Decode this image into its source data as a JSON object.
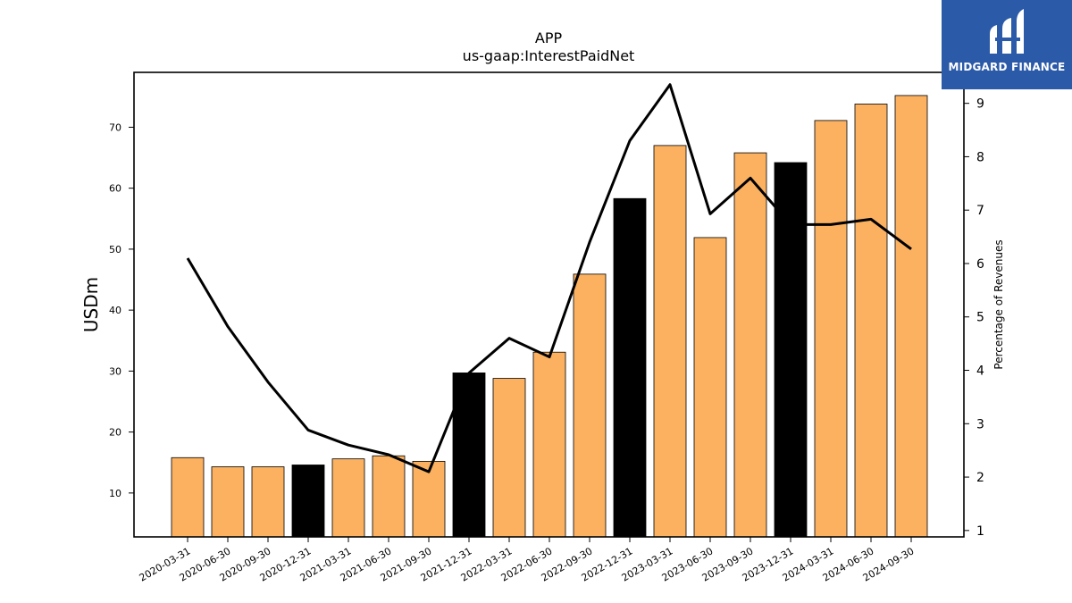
{
  "chart_data": {
    "type": "bar",
    "title": "APP",
    "subtitle": "us-gaap:InterestPaidNet",
    "ylabel": "USDm",
    "y2label": "Percentage of Revenues",
    "ylim": [
      2.8,
      79
    ],
    "y2lim": [
      0.88,
      9.58
    ],
    "yticks": [
      10,
      20,
      30,
      40,
      50,
      60,
      70
    ],
    "y2ticks": [
      1,
      2,
      3,
      4,
      5,
      6,
      7,
      8,
      9
    ],
    "grid": false,
    "categories": [
      "2020-03-31",
      "2020-06-30",
      "2020-09-30",
      "2020-12-31",
      "2021-03-31",
      "2021-06-30",
      "2021-09-30",
      "2021-12-31",
      "2022-03-31",
      "2022-06-30",
      "2022-09-30",
      "2022-12-31",
      "2023-03-31",
      "2023-06-30",
      "2023-09-30",
      "2023-12-31",
      "2024-03-31",
      "2024-06-30",
      "2024-09-30"
    ],
    "series": [
      {
        "kind": "bar",
        "values": [
          15.8,
          14.3,
          14.3,
          14.6,
          15.6,
          16.1,
          15.2,
          29.7,
          28.8,
          33.1,
          45.9,
          58.3,
          67.0,
          51.9,
          65.8,
          64.2,
          71.1,
          73.8,
          75.2
        ],
        "colors": [
          "#fbb160",
          "#fbb160",
          "#fbb160",
          "#000000",
          "#fbb160",
          "#fbb160",
          "#fbb160",
          "#000000",
          "#fbb160",
          "#fbb160",
          "#fbb160",
          "#000000",
          "#fbb160",
          "#fbb160",
          "#fbb160",
          "#000000",
          "#fbb160",
          "#fbb160",
          "#fbb160"
        ]
      },
      {
        "kind": "line",
        "axis": "right",
        "color": "#000000",
        "values": [
          6.1,
          4.82,
          3.78,
          2.88,
          2.6,
          2.42,
          2.1,
          3.95,
          4.6,
          4.25,
          6.4,
          8.3,
          9.35,
          6.93,
          7.6,
          6.73,
          6.73,
          6.83,
          6.27
        ]
      }
    ]
  },
  "logo": {
    "text": "MIDGARD FINANCE",
    "background": "#2b5aa8",
    "icon": "midgard-logo-icon"
  }
}
